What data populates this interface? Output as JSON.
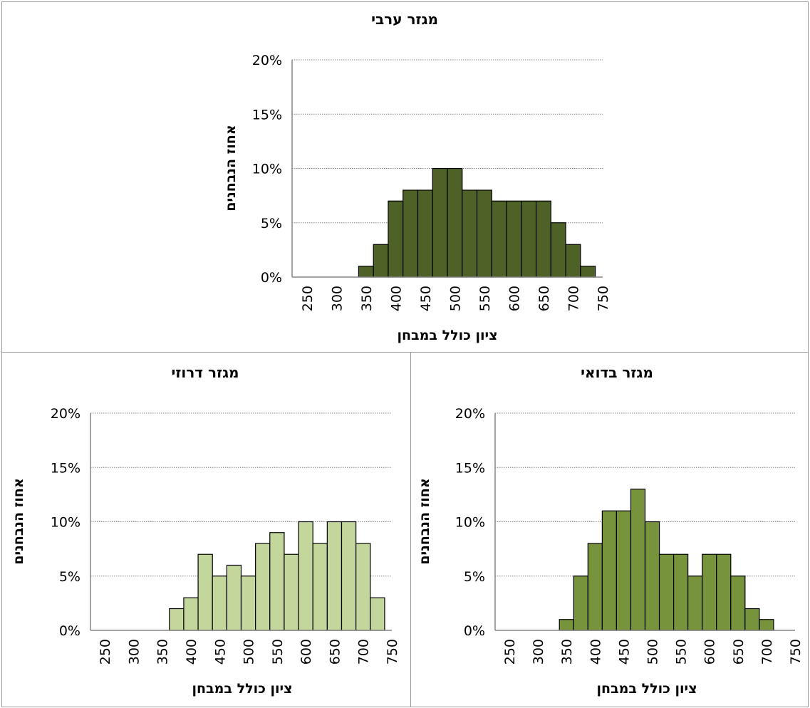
{
  "colors": {
    "arab": "#4e6228",
    "bedouin": "#77933c",
    "druze": "#c3d69b",
    "bar_stroke": "#000000",
    "grid": "#868686",
    "axis": "#868686",
    "frame": "#9a9a9a"
  },
  "chart_data": [
    {
      "type": "bar",
      "title": "מגזר ערבי",
      "xlabel": "ציון כולל במבחן",
      "ylabel": "אחוז הנבחנים",
      "ylim": [
        0,
        20
      ],
      "yticks": [
        "0%",
        "5%",
        "10%",
        "15%",
        "20%"
      ],
      "xticks": [
        "250",
        "300",
        "350",
        "400",
        "450",
        "500",
        "550",
        "600",
        "650",
        "700",
        "750"
      ],
      "xlim": [
        225,
        750
      ],
      "grid": true,
      "bins": [
        {
          "center": 350,
          "value": 1
        },
        {
          "center": 375,
          "value": 3
        },
        {
          "center": 400,
          "value": 7
        },
        {
          "center": 425,
          "value": 8
        },
        {
          "center": 450,
          "value": 8
        },
        {
          "center": 475,
          "value": 10
        },
        {
          "center": 500,
          "value": 10
        },
        {
          "center": 525,
          "value": 8
        },
        {
          "center": 550,
          "value": 8
        },
        {
          "center": 575,
          "value": 7
        },
        {
          "center": 600,
          "value": 7
        },
        {
          "center": 625,
          "value": 7
        },
        {
          "center": 650,
          "value": 7
        },
        {
          "center": 675,
          "value": 5
        },
        {
          "center": 700,
          "value": 3
        },
        {
          "center": 725,
          "value": 1
        }
      ],
      "color_key": "arab"
    },
    {
      "type": "bar",
      "title": "מגזר בדואי",
      "xlabel": "ציון כולל במבחן",
      "ylabel": "אחוז הנבחנים",
      "ylim": [
        0,
        20
      ],
      "yticks": [
        "0%",
        "5%",
        "10%",
        "15%",
        "20%"
      ],
      "xticks": [
        "250",
        "300",
        "350",
        "400",
        "450",
        "500",
        "550",
        "600",
        "650",
        "700",
        "750"
      ],
      "xlim": [
        225,
        750
      ],
      "grid": true,
      "bins": [
        {
          "center": 350,
          "value": 1
        },
        {
          "center": 375,
          "value": 5
        },
        {
          "center": 400,
          "value": 8
        },
        {
          "center": 425,
          "value": 11
        },
        {
          "center": 450,
          "value": 11
        },
        {
          "center": 475,
          "value": 13
        },
        {
          "center": 500,
          "value": 10
        },
        {
          "center": 525,
          "value": 7
        },
        {
          "center": 550,
          "value": 7
        },
        {
          "center": 575,
          "value": 5
        },
        {
          "center": 600,
          "value": 7
        },
        {
          "center": 625,
          "value": 7
        },
        {
          "center": 650,
          "value": 5
        },
        {
          "center": 675,
          "value": 2
        },
        {
          "center": 700,
          "value": 1
        }
      ],
      "color_key": "bedouin"
    },
    {
      "type": "bar",
      "title": "מגזר דרוזי",
      "xlabel": "ציון כולל במבחן",
      "ylabel": "אחוז הנבחנים",
      "ylim": [
        0,
        20
      ],
      "yticks": [
        "0%",
        "5%",
        "10%",
        "15%",
        "20%"
      ],
      "xticks": [
        "250",
        "300",
        "350",
        "400",
        "450",
        "500",
        "550",
        "600",
        "650",
        "700",
        "750"
      ],
      "xlim": [
        225,
        750
      ],
      "grid": true,
      "bins": [
        {
          "center": 375,
          "value": 2
        },
        {
          "center": 400,
          "value": 3
        },
        {
          "center": 425,
          "value": 7
        },
        {
          "center": 450,
          "value": 5
        },
        {
          "center": 475,
          "value": 6
        },
        {
          "center": 500,
          "value": 5
        },
        {
          "center": 525,
          "value": 8
        },
        {
          "center": 550,
          "value": 9
        },
        {
          "center": 575,
          "value": 7
        },
        {
          "center": 600,
          "value": 10
        },
        {
          "center": 625,
          "value": 8
        },
        {
          "center": 650,
          "value": 10
        },
        {
          "center": 675,
          "value": 10
        },
        {
          "center": 700,
          "value": 8
        },
        {
          "center": 725,
          "value": 3
        }
      ],
      "color_key": "druze"
    }
  ]
}
